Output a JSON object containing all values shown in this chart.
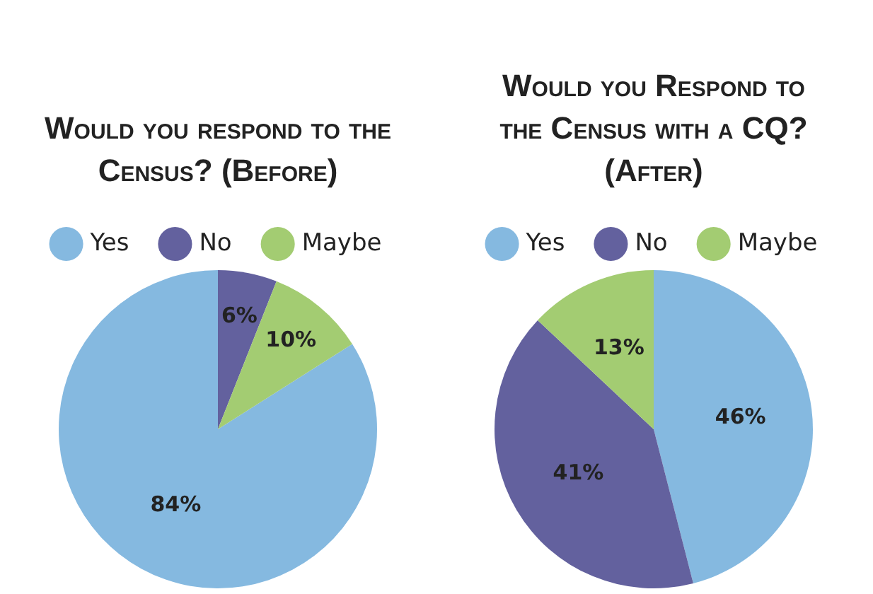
{
  "chart_data": [
    {
      "type": "pie",
      "title": "Would you respond to the Census? (Before)",
      "categories": [
        "Yes",
        "No",
        "Maybe"
      ],
      "values": [
        84,
        6,
        10
      ],
      "colors": [
        "#85b9e0",
        "#63619e",
        "#a3cc72"
      ],
      "value_labels": [
        "84%",
        "6%",
        "10%"
      ],
      "legend": "top"
    },
    {
      "type": "pie",
      "title": "Would you Respond to the Census with a CQ?(After)",
      "categories": [
        "Yes",
        "No",
        "Maybe"
      ],
      "values": [
        46,
        41,
        13
      ],
      "colors": [
        "#85b9e0",
        "#63619e",
        "#a3cc72"
      ],
      "value_labels": [
        "46%",
        "41%",
        "13%"
      ],
      "legend": "top"
    }
  ]
}
